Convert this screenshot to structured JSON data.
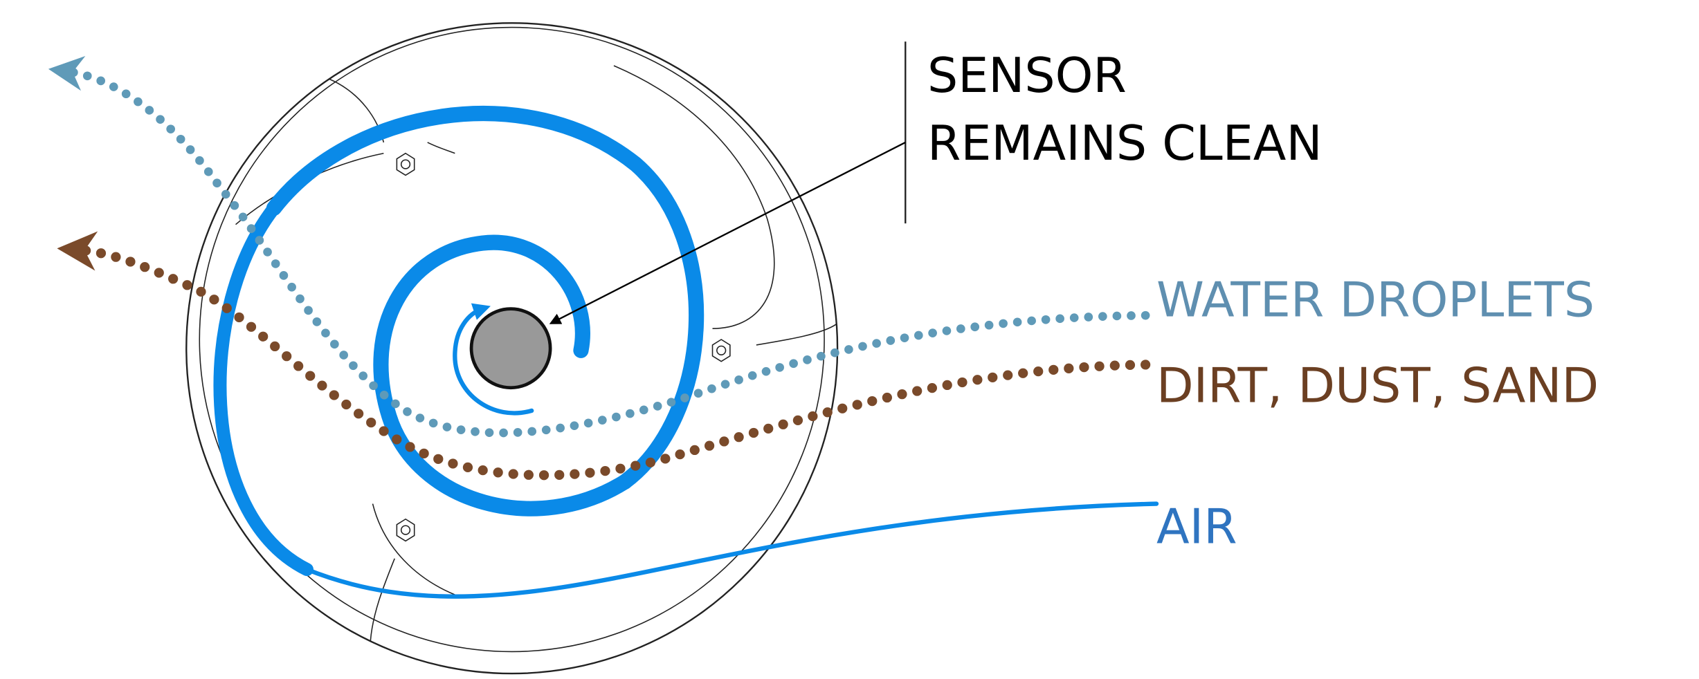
{
  "callout": {
    "lines": [
      "SENSOR",
      "REMAINS CLEAN"
    ]
  },
  "flows": [
    {
      "label": "WATER DROPLETS"
    },
    {
      "label": "DIRT, DUST, SAND"
    },
    {
      "label": "AIR"
    }
  ]
}
